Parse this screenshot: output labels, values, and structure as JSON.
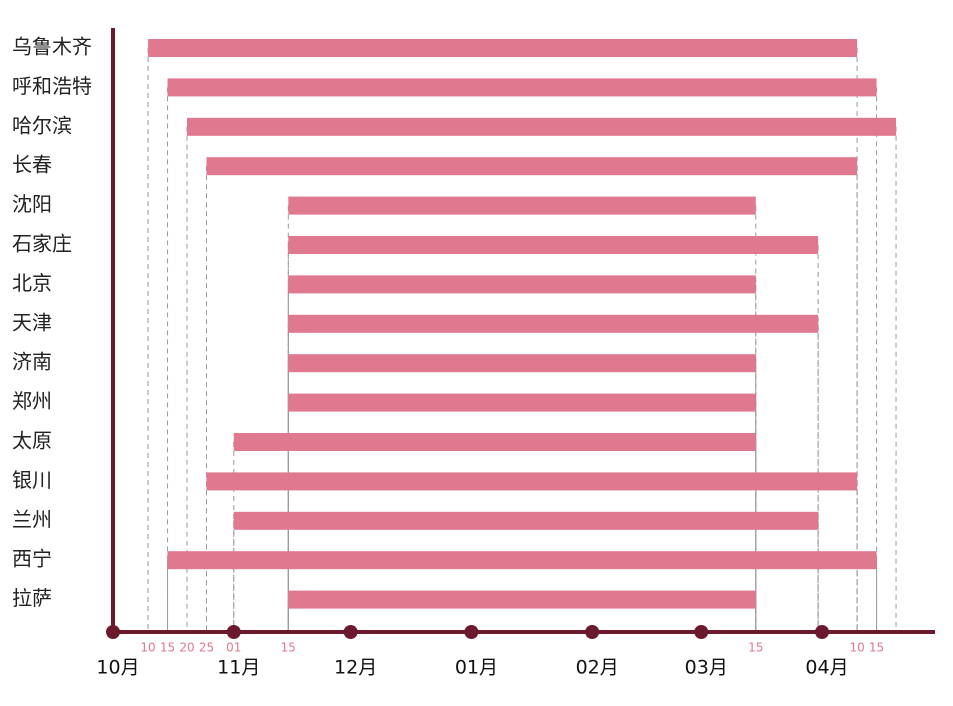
{
  "chart_data": {
    "type": "gantt",
    "categories": [
      "乌鲁木齐",
      "呼和浩特",
      "哈尔滨",
      "长春",
      "沈阳",
      "石家庄",
      "北京",
      "天津",
      "济南",
      "郑州",
      "太原",
      "银川",
      "兰州",
      "西宁",
      "拉萨"
    ],
    "starts": [
      9,
      14,
      19,
      24,
      45,
      45,
      45,
      45,
      45,
      45,
      31,
      24,
      31,
      14,
      45
    ],
    "ends": [
      191,
      196,
      201,
      191,
      165,
      181,
      165,
      181,
      165,
      165,
      165,
      191,
      181,
      196,
      165
    ],
    "color": "#e07890",
    "axis_color": "#6b1a2e",
    "xlim": [
      0,
      211
    ],
    "xticks": [
      {
        "value": 0,
        "label": "10月"
      },
      {
        "value": 31,
        "label": "11月"
      },
      {
        "value": 61,
        "label": "12月"
      },
      {
        "value": 92,
        "label": "01月"
      },
      {
        "value": 123,
        "label": "02月"
      },
      {
        "value": 151,
        "label": "03月"
      },
      {
        "value": 182,
        "label": "04月"
      }
    ],
    "day_ticks": [
      {
        "value": 9,
        "label": "10"
      },
      {
        "value": 14,
        "label": "15"
      },
      {
        "value": 19,
        "label": "20"
      },
      {
        "value": 24,
        "label": "25"
      },
      {
        "value": 31,
        "label": "01"
      },
      {
        "value": 45,
        "label": "15"
      },
      {
        "value": 165,
        "label": "15"
      },
      {
        "value": 191,
        "label": "10"
      },
      {
        "value": 196,
        "label": "15"
      }
    ]
  }
}
